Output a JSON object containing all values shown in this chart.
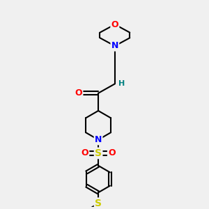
{
  "bg_color": "#f0f0f0",
  "atom_colors": {
    "C": "#000000",
    "N": "#0000ff",
    "O": "#ff0000",
    "S": "#cccc00",
    "H": "#008080"
  },
  "bond_color": "#000000",
  "bond_width": 1.5,
  "figsize": [
    3.0,
    3.0
  ],
  "dpi": 100
}
